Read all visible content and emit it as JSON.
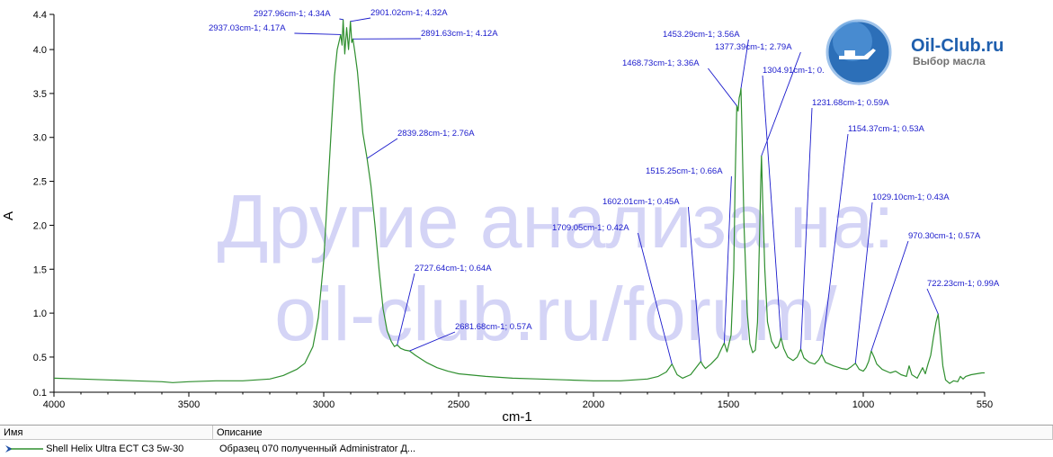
{
  "chart_data": {
    "type": "line",
    "xlabel": "cm-1",
    "ylabel": "A",
    "xlim": [
      4000,
      550
    ],
    "ylim": [
      0.1,
      4.4
    ],
    "x_ticks": [
      4000,
      3500,
      3000,
      2500,
      2000,
      1500,
      1000,
      550
    ],
    "y_ticks": [
      0.1,
      0.5,
      1.0,
      1.5,
      2.0,
      2.5,
      3.0,
      3.5,
      4.0,
      4.4
    ],
    "grid": false,
    "series": [
      {
        "name": "Shell Helix Ultra ECT C3 5w-30",
        "color": "#2f8f2f",
        "points": [
          [
            4000,
            0.26
          ],
          [
            3900,
            0.25
          ],
          [
            3800,
            0.24
          ],
          [
            3700,
            0.23
          ],
          [
            3600,
            0.22
          ],
          [
            3560,
            0.21
          ],
          [
            3500,
            0.22
          ],
          [
            3400,
            0.23
          ],
          [
            3300,
            0.23
          ],
          [
            3200,
            0.25
          ],
          [
            3150,
            0.29
          ],
          [
            3100,
            0.36
          ],
          [
            3070,
            0.43
          ],
          [
            3040,
            0.62
          ],
          [
            3020,
            0.95
          ],
          [
            3000,
            1.6
          ],
          [
            2985,
            2.4
          ],
          [
            2970,
            3.2
          ],
          [
            2960,
            3.7
          ],
          [
            2950,
            4.0
          ],
          [
            2937.03,
            4.17
          ],
          [
            2932,
            4.05
          ],
          [
            2927.96,
            4.34
          ],
          [
            2922,
            3.95
          ],
          [
            2915,
            4.25
          ],
          [
            2908,
            4.0
          ],
          [
            2901.02,
            4.32
          ],
          [
            2896,
            4.08
          ],
          [
            2891.63,
            4.12
          ],
          [
            2885,
            3.98
          ],
          [
            2875,
            3.75
          ],
          [
            2865,
            3.4
          ],
          [
            2855,
            3.05
          ],
          [
            2839.28,
            2.76
          ],
          [
            2825,
            2.45
          ],
          [
            2810,
            2.0
          ],
          [
            2795,
            1.5
          ],
          [
            2780,
            1.05
          ],
          [
            2765,
            0.8
          ],
          [
            2750,
            0.68
          ],
          [
            2738,
            0.62
          ],
          [
            2727.64,
            0.64
          ],
          [
            2715,
            0.6
          ],
          [
            2700,
            0.58
          ],
          [
            2681.68,
            0.57
          ],
          [
            2660,
            0.52
          ],
          [
            2620,
            0.44
          ],
          [
            2580,
            0.38
          ],
          [
            2540,
            0.34
          ],
          [
            2500,
            0.31
          ],
          [
            2400,
            0.28
          ],
          [
            2300,
            0.26
          ],
          [
            2200,
            0.25
          ],
          [
            2100,
            0.24
          ],
          [
            2000,
            0.23
          ],
          [
            1900,
            0.23
          ],
          [
            1800,
            0.25
          ],
          [
            1760,
            0.28
          ],
          [
            1730,
            0.33
          ],
          [
            1709.05,
            0.42
          ],
          [
            1690,
            0.3
          ],
          [
            1670,
            0.26
          ],
          [
            1640,
            0.3
          ],
          [
            1620,
            0.38
          ],
          [
            1602.01,
            0.45
          ],
          [
            1595,
            0.41
          ],
          [
            1585,
            0.37
          ],
          [
            1565,
            0.42
          ],
          [
            1540,
            0.5
          ],
          [
            1525,
            0.6
          ],
          [
            1515.25,
            0.66
          ],
          [
            1505,
            0.56
          ],
          [
            1490,
            0.75
          ],
          [
            1480,
            1.5
          ],
          [
            1475,
            2.5
          ],
          [
            1470,
            3.2
          ],
          [
            1468.73,
            3.36
          ],
          [
            1464,
            3.3
          ],
          [
            1460,
            3.45
          ],
          [
            1456,
            3.5
          ],
          [
            1453.29,
            3.56
          ],
          [
            1449,
            3.0
          ],
          [
            1442,
            2.0
          ],
          [
            1430,
            1.0
          ],
          [
            1420,
            0.65
          ],
          [
            1410,
            0.55
          ],
          [
            1400,
            0.58
          ],
          [
            1392,
            0.9
          ],
          [
            1385,
            1.8
          ],
          [
            1380,
            2.5
          ],
          [
            1377.39,
            2.79
          ],
          [
            1373,
            2.3
          ],
          [
            1365,
            1.5
          ],
          [
            1355,
            0.9
          ],
          [
            1340,
            0.68
          ],
          [
            1325,
            0.6
          ],
          [
            1315,
            0.62
          ],
          [
            1304.91,
            0.72
          ],
          [
            1295,
            0.6
          ],
          [
            1280,
            0.5
          ],
          [
            1260,
            0.46
          ],
          [
            1245,
            0.5
          ],
          [
            1231.68,
            0.59
          ],
          [
            1220,
            0.49
          ],
          [
            1200,
            0.44
          ],
          [
            1180,
            0.42
          ],
          [
            1165,
            0.47
          ],
          [
            1154.37,
            0.53
          ],
          [
            1140,
            0.44
          ],
          [
            1110,
            0.4
          ],
          [
            1080,
            0.37
          ],
          [
            1060,
            0.36
          ],
          [
            1045,
            0.39
          ],
          [
            1029.1,
            0.43
          ],
          [
            1015,
            0.36
          ],
          [
            1000,
            0.34
          ],
          [
            990,
            0.38
          ],
          [
            980,
            0.45
          ],
          [
            970.3,
            0.57
          ],
          [
            960,
            0.5
          ],
          [
            950,
            0.42
          ],
          [
            930,
            0.36
          ],
          [
            900,
            0.32
          ],
          [
            880,
            0.34
          ],
          [
            860,
            0.3
          ],
          [
            840,
            0.28
          ],
          [
            830,
            0.4
          ],
          [
            820,
            0.3
          ],
          [
            800,
            0.26
          ],
          [
            780,
            0.38
          ],
          [
            770,
            0.31
          ],
          [
            760,
            0.42
          ],
          [
            750,
            0.52
          ],
          [
            740,
            0.72
          ],
          [
            730,
            0.9
          ],
          [
            722.23,
            0.99
          ],
          [
            715,
            0.75
          ],
          [
            705,
            0.4
          ],
          [
            695,
            0.24
          ],
          [
            680,
            0.2
          ],
          [
            665,
            0.23
          ],
          [
            650,
            0.22
          ],
          [
            640,
            0.28
          ],
          [
            630,
            0.25
          ],
          [
            620,
            0.28
          ],
          [
            600,
            0.3
          ],
          [
            580,
            0.31
          ],
          [
            560,
            0.32
          ],
          [
            550,
            0.32
          ]
        ]
      }
    ],
    "annotations": [
      {
        "x": 2927.96,
        "y": 4.34,
        "label": "2927.96cm-1; 4.34A"
      },
      {
        "x": 2901.02,
        "y": 4.32,
        "label": "2901.02cm-1; 4.32A"
      },
      {
        "x": 2937.03,
        "y": 4.17,
        "label": "2937.03cm-1; 4.17A"
      },
      {
        "x": 2891.63,
        "y": 4.12,
        "label": "2891.63cm-1; 4.12A"
      },
      {
        "x": 2839.28,
        "y": 2.76,
        "label": "2839.28cm-1; 2.76A"
      },
      {
        "x": 2727.64,
        "y": 0.64,
        "label": "2727.64cm-1; 0.64A"
      },
      {
        "x": 2681.68,
        "y": 0.57,
        "label": "2681.68cm-1; 0.57A"
      },
      {
        "x": 1453.29,
        "y": 3.56,
        "label": "1453.29cm-1; 3.56A"
      },
      {
        "x": 1377.39,
        "y": 2.79,
        "label": "1377.39cm-1; 2.79A"
      },
      {
        "x": 1468.73,
        "y": 3.36,
        "label": "1468.73cm-1; 3.36A"
      },
      {
        "x": 1304.91,
        "y": 0.72,
        "label": "1304.91cm-1; 0."
      },
      {
        "x": 1231.68,
        "y": 0.59,
        "label": "1231.68cm-1; 0.59A"
      },
      {
        "x": 1154.37,
        "y": 0.53,
        "label": "1154.37cm-1; 0.53A"
      },
      {
        "x": 1515.25,
        "y": 0.66,
        "label": "1515.25cm-1; 0.66A"
      },
      {
        "x": 1029.1,
        "y": 0.43,
        "label": "1029.10cm-1; 0.43A"
      },
      {
        "x": 1602.01,
        "y": 0.45,
        "label": "1602.01cm-1; 0.45A"
      },
      {
        "x": 1709.05,
        "y": 0.42,
        "label": "1709.05cm-1; 0.42A"
      },
      {
        "x": 970.3,
        "y": 0.57,
        "label": "970.30cm-1; 0.57A"
      },
      {
        "x": 722.23,
        "y": 0.99,
        "label": "722.23cm-1; 0.99A"
      }
    ]
  },
  "watermark": {
    "line1": "Другие анализа на:",
    "line2": "oil-club.ru/forum/"
  },
  "logo": {
    "name": "Oil-Club.ru",
    "tagline": "Выбор масла",
    "icon": "oil-can-icon"
  },
  "legend": {
    "col_name": "Имя",
    "col_desc": "Описание",
    "rows": [
      {
        "name": "Shell Helix Ultra ECT C3 5w-30",
        "description": "Образец 070 полученный Administrator Д...",
        "color": "#2f8f2f",
        "icon": "arrow-marker-icon"
      }
    ]
  }
}
